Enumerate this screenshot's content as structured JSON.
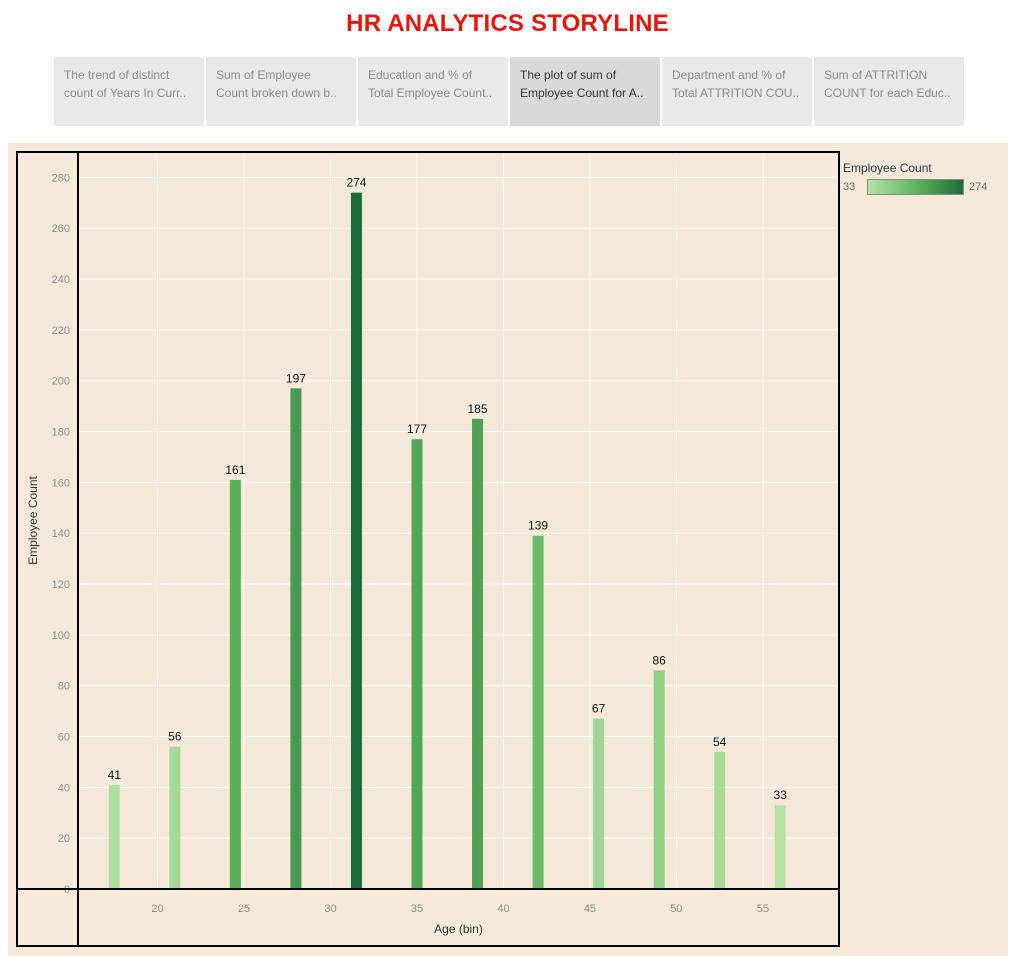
{
  "story": {
    "title": "HR ANALYTICS STORYLINE",
    "tabs": [
      {
        "line1": "The trend of distinct",
        "line2": "count of Years In Curr..",
        "active": false
      },
      {
        "line1": "Sum of Employee",
        "line2": "Count broken down b..",
        "active": false
      },
      {
        "line1": "Education and % of",
        "line2": "Total Employee Count..",
        "active": false
      },
      {
        "line1": "The plot of sum of",
        "line2": "Employee Count for A..",
        "active": true
      },
      {
        "line1": "Department and % of",
        "line2": "Total ATTRITION COU..",
        "active": false
      },
      {
        "line1": "Sum of ATTRITION",
        "line2": "COUNT for each Educ..",
        "active": false
      }
    ]
  },
  "legend": {
    "title": "Employee Count",
    "min_label": "33",
    "max_label": "274",
    "color_min": "#b6e3a4",
    "color_mid": "#5fb55c",
    "color_max": "#1e6b37"
  },
  "colors": {
    "title_red": "#e8150d",
    "panel_bg": "#f4e9d8",
    "tab_bg": "#e9e9e9",
    "tab_active_bg": "#d9d9d9"
  },
  "chart_data": {
    "type": "bar",
    "xlabel": "Age (bin)",
    "ylabel": "Employee Count",
    "xlim": [
      15.4,
      59.4
    ],
    "ylim": [
      0,
      290
    ],
    "x": [
      17.5,
      21,
      24.5,
      28,
      31.5,
      35,
      38.5,
      42,
      45.5,
      49,
      52.5,
      56
    ],
    "values": [
      41,
      56,
      161,
      197,
      274,
      177,
      185,
      139,
      67,
      86,
      54,
      33
    ],
    "x_ticks": [
      20,
      25,
      30,
      35,
      40,
      45,
      50,
      55
    ],
    "y_ticks": [
      0,
      20,
      40,
      60,
      80,
      100,
      120,
      140,
      160,
      180,
      200,
      220,
      240,
      260,
      280
    ],
    "data_labels": true,
    "grid": true,
    "legend_position": "top-right"
  }
}
